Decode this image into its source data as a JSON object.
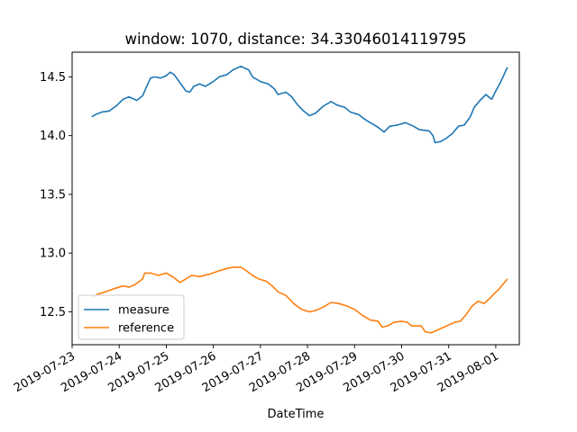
{
  "chart_data": {
    "type": "line",
    "title": "window: 1070, distance: 34.33046014119795",
    "xlabel": "DateTime",
    "ylabel": "",
    "x_ticks": [
      "2019-07-23",
      "2019-07-24",
      "2019-07-25",
      "2019-07-26",
      "2019-07-27",
      "2019-07-28",
      "2019-07-29",
      "2019-07-30",
      "2019-07-31",
      "2019-08-01"
    ],
    "xlim": [
      "2019-07-23 00:00",
      "2019-08-01 12:00"
    ],
    "ylim": [
      12.22,
      14.71
    ],
    "y_ticks": [
      12.5,
      13.0,
      13.5,
      14.0,
      14.5
    ],
    "y_tick_labels": [
      "12.5",
      "13.0",
      "13.5",
      "14.0",
      "14.5"
    ],
    "legend_position": "lower-left",
    "grid": false,
    "series": [
      {
        "name": "measure",
        "color": "#1f77b4",
        "points": [
          [
            "2019-07-23 10:00",
            14.16
          ],
          [
            "2019-07-23 12:00",
            14.18
          ],
          [
            "2019-07-23 15:00",
            14.2
          ],
          [
            "2019-07-23 19:00",
            14.21
          ],
          [
            "2019-07-23 23:00",
            14.26
          ],
          [
            "2019-07-24 02:00",
            14.31
          ],
          [
            "2019-07-24 05:00",
            14.33
          ],
          [
            "2019-07-24 09:00",
            14.3
          ],
          [
            "2019-07-24 12:00",
            14.34
          ],
          [
            "2019-07-24 14:00",
            14.42
          ],
          [
            "2019-07-24 16:00",
            14.49
          ],
          [
            "2019-07-24 18:00",
            14.5
          ],
          [
            "2019-07-24 21:00",
            14.49
          ],
          [
            "2019-07-25 00:00",
            14.51
          ],
          [
            "2019-07-25 02:00",
            14.54
          ],
          [
            "2019-07-25 04:00",
            14.52
          ],
          [
            "2019-07-25 07:00",
            14.45
          ],
          [
            "2019-07-25 10:00",
            14.38
          ],
          [
            "2019-07-25 12:00",
            14.37
          ],
          [
            "2019-07-25 14:00",
            14.42
          ],
          [
            "2019-07-25 17:00",
            14.44
          ],
          [
            "2019-07-25 20:00",
            14.42
          ],
          [
            "2019-07-26 00:00",
            14.46
          ],
          [
            "2019-07-26 03:00",
            14.5
          ],
          [
            "2019-07-26 07:00",
            14.52
          ],
          [
            "2019-07-26 10:00",
            14.56
          ],
          [
            "2019-07-26 14:00",
            14.59
          ],
          [
            "2019-07-26 18:00",
            14.56
          ],
          [
            "2019-07-26 20:00",
            14.5
          ],
          [
            "2019-07-27 00:00",
            14.46
          ],
          [
            "2019-07-27 04:00",
            14.44
          ],
          [
            "2019-07-27 07:00",
            14.4
          ],
          [
            "2019-07-27 09:00",
            14.35
          ],
          [
            "2019-07-27 13:00",
            14.37
          ],
          [
            "2019-07-27 16:00",
            14.33
          ],
          [
            "2019-07-27 19:00",
            14.26
          ],
          [
            "2019-07-27 22:00",
            14.21
          ],
          [
            "2019-07-28 01:00",
            14.17
          ],
          [
            "2019-07-28 04:00",
            14.19
          ],
          [
            "2019-07-28 08:00",
            14.25
          ],
          [
            "2019-07-28 12:00",
            14.29
          ],
          [
            "2019-07-28 15:00",
            14.26
          ],
          [
            "2019-07-28 19:00",
            14.24
          ],
          [
            "2019-07-28 22:00",
            14.2
          ],
          [
            "2019-07-29 02:00",
            14.18
          ],
          [
            "2019-07-29 06:00",
            14.13
          ],
          [
            "2019-07-29 09:00",
            14.1
          ],
          [
            "2019-07-29 12:00",
            14.07
          ],
          [
            "2019-07-29 15:00",
            14.03
          ],
          [
            "2019-07-29 18:00",
            14.08
          ],
          [
            "2019-07-29 22:00",
            14.09
          ],
          [
            "2019-07-30 02:00",
            14.11
          ],
          [
            "2019-07-30 06:00",
            14.08
          ],
          [
            "2019-07-30 09:00",
            14.05
          ],
          [
            "2019-07-30 14:00",
            14.04
          ],
          [
            "2019-07-30 16:00",
            14.0
          ],
          [
            "2019-07-30 17:00",
            13.94
          ],
          [
            "2019-07-30 20:00",
            13.95
          ],
          [
            "2019-07-30 23:00",
            13.98
          ],
          [
            "2019-07-31 02:00",
            14.02
          ],
          [
            "2019-07-31 05:00",
            14.08
          ],
          [
            "2019-07-31 08:00",
            14.09
          ],
          [
            "2019-07-31 11:00",
            14.16
          ],
          [
            "2019-07-31 13:00",
            14.24
          ],
          [
            "2019-07-31 16:00",
            14.3
          ],
          [
            "2019-07-31 19:00",
            14.35
          ],
          [
            "2019-07-31 21:00",
            14.32
          ],
          [
            "2019-07-31 22:00",
            14.31
          ],
          [
            "2019-08-01 00:00",
            14.38
          ],
          [
            "2019-08-01 02:00",
            14.44
          ],
          [
            "2019-08-01 04:00",
            14.51
          ],
          [
            "2019-08-01 05:00",
            14.55
          ],
          [
            "2019-08-01 06:00",
            14.58
          ]
        ]
      },
      {
        "name": "reference",
        "color": "#ff7f0e",
        "points": [
          [
            "2019-07-23 10:00",
            12.62
          ],
          [
            "2019-07-23 13:00",
            12.65
          ],
          [
            "2019-07-23 17:00",
            12.67
          ],
          [
            "2019-07-23 22:00",
            12.7
          ],
          [
            "2019-07-24 02:00",
            12.72
          ],
          [
            "2019-07-24 05:00",
            12.71
          ],
          [
            "2019-07-24 08:00",
            12.73
          ],
          [
            "2019-07-24 12:00",
            12.78
          ],
          [
            "2019-07-24 13:00",
            12.83
          ],
          [
            "2019-07-24 16:00",
            12.83
          ],
          [
            "2019-07-24 20:00",
            12.81
          ],
          [
            "2019-07-25 00:00",
            12.83
          ],
          [
            "2019-07-25 04:00",
            12.79
          ],
          [
            "2019-07-25 07:00",
            12.75
          ],
          [
            "2019-07-25 10:00",
            12.78
          ],
          [
            "2019-07-25 13:00",
            12.81
          ],
          [
            "2019-07-25 17:00",
            12.8
          ],
          [
            "2019-07-25 22:00",
            12.82
          ],
          [
            "2019-07-26 03:00",
            12.85
          ],
          [
            "2019-07-26 07:00",
            12.87
          ],
          [
            "2019-07-26 10:00",
            12.88
          ],
          [
            "2019-07-26 14:00",
            12.88
          ],
          [
            "2019-07-26 16:00",
            12.86
          ],
          [
            "2019-07-26 20:00",
            12.81
          ],
          [
            "2019-07-26 23:00",
            12.78
          ],
          [
            "2019-07-27 03:00",
            12.76
          ],
          [
            "2019-07-27 06:00",
            12.72
          ],
          [
            "2019-07-27 09:00",
            12.67
          ],
          [
            "2019-07-27 13:00",
            12.64
          ],
          [
            "2019-07-27 17:00",
            12.57
          ],
          [
            "2019-07-27 21:00",
            12.52
          ],
          [
            "2019-07-28 01:00",
            12.5
          ],
          [
            "2019-07-28 04:00",
            12.51
          ],
          [
            "2019-07-28 08:00",
            12.54
          ],
          [
            "2019-07-28 12:00",
            12.58
          ],
          [
            "2019-07-28 16:00",
            12.57
          ],
          [
            "2019-07-28 20:00",
            12.55
          ],
          [
            "2019-07-29 00:00",
            12.52
          ],
          [
            "2019-07-29 04:00",
            12.47
          ],
          [
            "2019-07-29 08:00",
            12.43
          ],
          [
            "2019-07-29 12:00",
            12.42
          ],
          [
            "2019-07-29 14:00",
            12.37
          ],
          [
            "2019-07-29 17:00",
            12.38
          ],
          [
            "2019-07-29 20:00",
            12.41
          ],
          [
            "2019-07-30 00:00",
            12.42
          ],
          [
            "2019-07-30 03:00",
            12.41
          ],
          [
            "2019-07-30 05:00",
            12.38
          ],
          [
            "2019-07-30 10:00",
            12.38
          ],
          [
            "2019-07-30 12:00",
            12.33
          ],
          [
            "2019-07-30 15:00",
            12.32
          ],
          [
            "2019-07-30 19:00",
            12.35
          ],
          [
            "2019-07-30 23:00",
            12.38
          ],
          [
            "2019-07-31 03:00",
            12.41
          ],
          [
            "2019-07-31 06:00",
            12.42
          ],
          [
            "2019-07-31 09:00",
            12.48
          ],
          [
            "2019-07-31 12:00",
            12.55
          ],
          [
            "2019-07-31 15:00",
            12.59
          ],
          [
            "2019-07-31 18:00",
            12.57
          ],
          [
            "2019-07-31 20:00",
            12.6
          ],
          [
            "2019-07-31 23:00",
            12.65
          ],
          [
            "2019-08-01 02:00",
            12.7
          ],
          [
            "2019-08-01 06:00",
            12.78
          ]
        ]
      }
    ]
  }
}
